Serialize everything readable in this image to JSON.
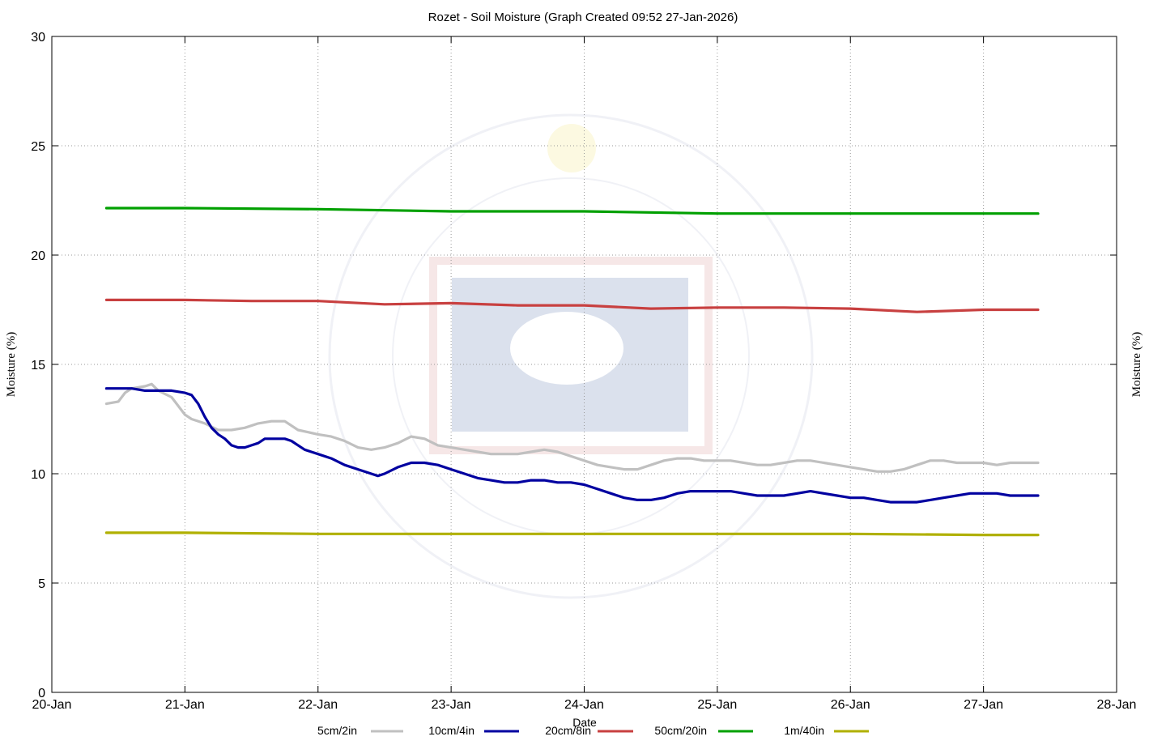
{
  "chart_data": {
    "type": "line",
    "title": "Rozet - Soil Moisture (Graph Created 09:52 27-Jan-2026)",
    "xlabel": "Date",
    "ylabel": "Moisture (%)",
    "ylabel_right": "Moisture (%)",
    "xlim": [
      0,
      8
    ],
    "ylim": [
      0,
      30
    ],
    "grid": true,
    "legend_position": "bottom",
    "x_ticks": [
      {
        "value": 0,
        "label": "20-Jan"
      },
      {
        "value": 1,
        "label": "21-Jan"
      },
      {
        "value": 2,
        "label": "22-Jan"
      },
      {
        "value": 3,
        "label": "23-Jan"
      },
      {
        "value": 4,
        "label": "24-Jan"
      },
      {
        "value": 5,
        "label": "25-Jan"
      },
      {
        "value": 6,
        "label": "26-Jan"
      },
      {
        "value": 7,
        "label": "27-Jan"
      },
      {
        "value": 8,
        "label": "28-Jan"
      }
    ],
    "y_ticks": [
      0,
      5,
      10,
      15,
      20,
      25,
      30
    ],
    "series": [
      {
        "name": "5cm/2in",
        "color": "#c0c0c0",
        "x": [
          0.41,
          0.5,
          0.55,
          0.6,
          0.7,
          0.75,
          0.8,
          0.9,
          1.0,
          1.05,
          1.15,
          1.25,
          1.35,
          1.45,
          1.55,
          1.65,
          1.75,
          1.85,
          2.0,
          2.1,
          2.2,
          2.3,
          2.4,
          2.5,
          2.6,
          2.7,
          2.8,
          2.9,
          3.0,
          3.1,
          3.2,
          3.3,
          3.4,
          3.5,
          3.6,
          3.7,
          3.8,
          3.9,
          4.0,
          4.1,
          4.2,
          4.3,
          4.4,
          4.5,
          4.6,
          4.7,
          4.8,
          4.9,
          5.0,
          5.1,
          5.2,
          5.3,
          5.4,
          5.5,
          5.6,
          5.7,
          5.8,
          5.9,
          6.0,
          6.1,
          6.2,
          6.3,
          6.4,
          6.5,
          6.6,
          6.7,
          6.8,
          6.9,
          7.0,
          7.1,
          7.2,
          7.3,
          7.41
        ],
        "values": [
          13.2,
          13.3,
          13.7,
          13.9,
          14.0,
          14.1,
          13.8,
          13.5,
          12.7,
          12.5,
          12.3,
          12.0,
          12.0,
          12.1,
          12.3,
          12.4,
          12.4,
          12.0,
          11.8,
          11.7,
          11.5,
          11.2,
          11.1,
          11.2,
          11.4,
          11.7,
          11.6,
          11.3,
          11.2,
          11.1,
          11.0,
          10.9,
          10.9,
          10.9,
          11.0,
          11.1,
          11.0,
          10.8,
          10.6,
          10.4,
          10.3,
          10.2,
          10.2,
          10.4,
          10.6,
          10.7,
          10.7,
          10.6,
          10.6,
          10.6,
          10.5,
          10.4,
          10.4,
          10.5,
          10.6,
          10.6,
          10.5,
          10.4,
          10.3,
          10.2,
          10.1,
          10.1,
          10.2,
          10.4,
          10.6,
          10.6,
          10.5,
          10.5,
          10.5,
          10.4,
          10.5,
          10.5,
          10.5
        ]
      },
      {
        "name": "10cm/4in",
        "color": "#0000a0",
        "x": [
          0.41,
          0.5,
          0.6,
          0.7,
          0.8,
          0.9,
          1.0,
          1.05,
          1.1,
          1.15,
          1.2,
          1.25,
          1.3,
          1.35,
          1.4,
          1.45,
          1.5,
          1.55,
          1.6,
          1.65,
          1.7,
          1.75,
          1.8,
          1.85,
          1.9,
          1.95,
          2.0,
          2.1,
          2.2,
          2.3,
          2.4,
          2.45,
          2.5,
          2.6,
          2.7,
          2.8,
          2.9,
          3.0,
          3.1,
          3.2,
          3.3,
          3.4,
          3.5,
          3.6,
          3.7,
          3.8,
          3.9,
          4.0,
          4.1,
          4.2,
          4.3,
          4.4,
          4.5,
          4.6,
          4.7,
          4.8,
          4.9,
          5.0,
          5.1,
          5.2,
          5.3,
          5.4,
          5.5,
          5.6,
          5.7,
          5.8,
          5.9,
          6.0,
          6.1,
          6.2,
          6.3,
          6.4,
          6.5,
          6.6,
          6.7,
          6.8,
          6.9,
          7.0,
          7.1,
          7.2,
          7.3,
          7.41
        ],
        "values": [
          13.9,
          13.9,
          13.9,
          13.8,
          13.8,
          13.8,
          13.7,
          13.6,
          13.2,
          12.6,
          12.1,
          11.8,
          11.6,
          11.3,
          11.2,
          11.2,
          11.3,
          11.4,
          11.6,
          11.6,
          11.6,
          11.6,
          11.5,
          11.3,
          11.1,
          11.0,
          10.9,
          10.7,
          10.4,
          10.2,
          10.0,
          9.9,
          10.0,
          10.3,
          10.5,
          10.5,
          10.4,
          10.2,
          10.0,
          9.8,
          9.7,
          9.6,
          9.6,
          9.7,
          9.7,
          9.6,
          9.6,
          9.5,
          9.3,
          9.1,
          8.9,
          8.8,
          8.8,
          8.9,
          9.1,
          9.2,
          9.2,
          9.2,
          9.2,
          9.1,
          9.0,
          9.0,
          9.0,
          9.1,
          9.2,
          9.1,
          9.0,
          8.9,
          8.9,
          8.8,
          8.7,
          8.7,
          8.7,
          8.8,
          8.9,
          9.0,
          9.1,
          9.1,
          9.1,
          9.0,
          9.0,
          9.0
        ]
      },
      {
        "name": "20cm/8in",
        "color": "#c84040",
        "x": [
          0.41,
          1.0,
          1.5,
          2.0,
          2.5,
          3.0,
          3.5,
          4.0,
          4.5,
          5.0,
          5.5,
          6.0,
          6.5,
          7.0,
          7.41
        ],
        "values": [
          17.95,
          17.95,
          17.9,
          17.9,
          17.75,
          17.8,
          17.7,
          17.7,
          17.55,
          17.6,
          17.6,
          17.55,
          17.4,
          17.5,
          17.5
        ]
      },
      {
        "name": "50cm/20in",
        "color": "#00a000",
        "x": [
          0.41,
          1.0,
          2.0,
          3.0,
          4.0,
          5.0,
          6.0,
          7.0,
          7.41
        ],
        "values": [
          22.15,
          22.15,
          22.1,
          22.0,
          22.0,
          21.9,
          21.9,
          21.9,
          21.9
        ]
      },
      {
        "name": "1m/40in",
        "color": "#b0b000",
        "x": [
          0.41,
          1.0,
          2.0,
          3.0,
          4.0,
          5.0,
          6.0,
          7.0,
          7.41
        ],
        "values": [
          7.3,
          7.3,
          7.25,
          7.25,
          7.25,
          7.25,
          7.25,
          7.2,
          7.2
        ]
      }
    ]
  }
}
